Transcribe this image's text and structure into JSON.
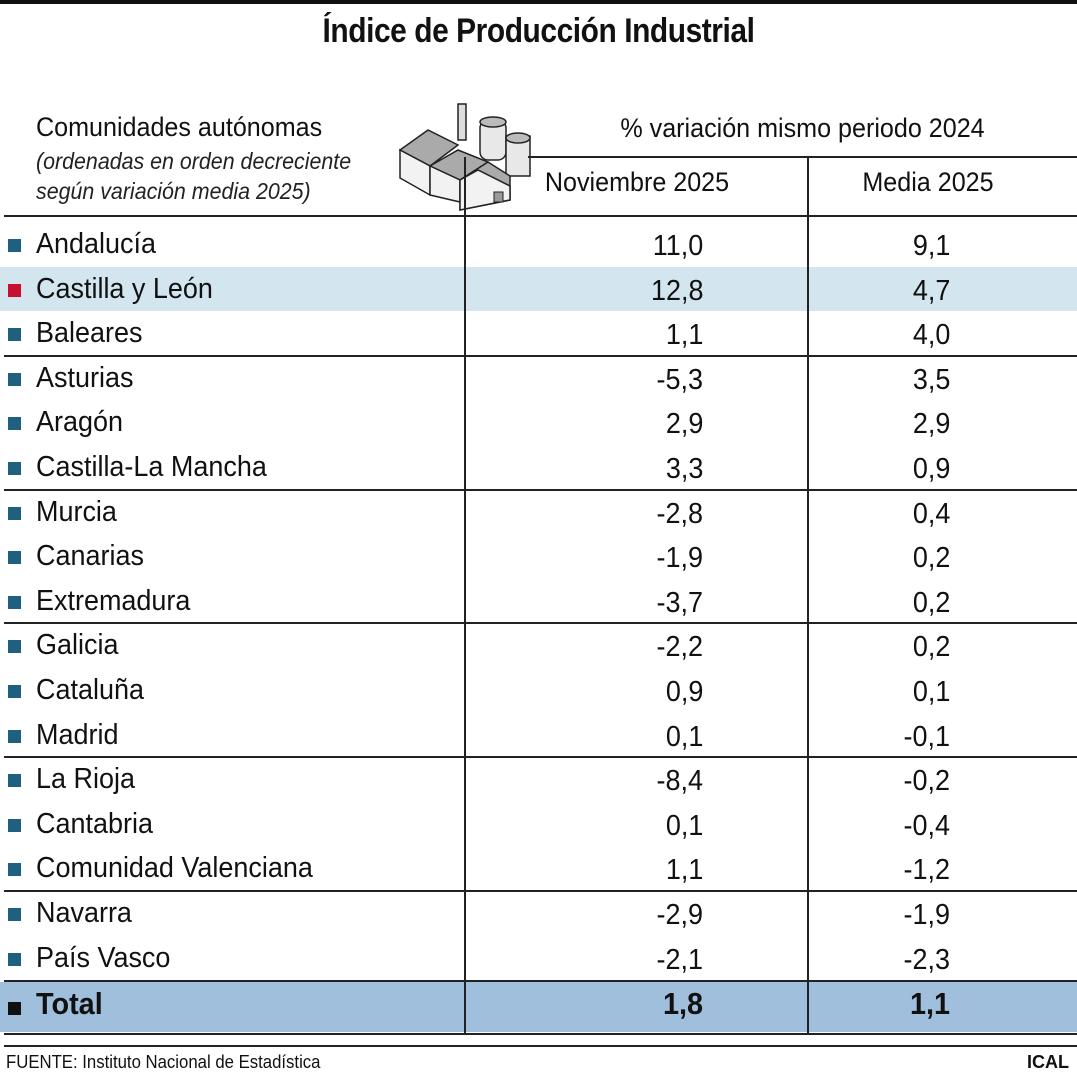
{
  "title": "Índice de Producción Industrial",
  "header": {
    "region_label": "Comunidades autónomas",
    "region_note_1": "(ordenadas en orden decreciente",
    "region_note_2": "según variación media 2025)",
    "variation_label": "% variación mismo periodo 2024",
    "col_november": "Noviembre 2025",
    "col_average": "Media 2025",
    "icon": "factory-icon"
  },
  "colors": {
    "default_marker": "#1f5f7f",
    "highlight_marker": "#c8102e",
    "highlight_row": "#d3e5ef",
    "total_row": "#9fbfdc",
    "total_marker": "#111111"
  },
  "rows": [
    {
      "name": "Andalucía",
      "nov": "11,0",
      "avg": "9,1"
    },
    {
      "name": "Castilla y León",
      "nov": "12,8",
      "avg": "4,7",
      "highlight": true
    },
    {
      "name": "Baleares",
      "nov": "1,1",
      "avg": "4,0"
    },
    {
      "name": "Asturias",
      "nov": "-5,3",
      "avg": "3,5"
    },
    {
      "name": "Aragón",
      "nov": "2,9",
      "avg": "2,9"
    },
    {
      "name": "Castilla-La Mancha",
      "nov": "3,3",
      "avg": "0,9"
    },
    {
      "name": "Murcia",
      "nov": "-2,8",
      "avg": "0,4"
    },
    {
      "name": "Canarias",
      "nov": "-1,9",
      "avg": "0,2"
    },
    {
      "name": "Extremadura",
      "nov": "-3,7",
      "avg": "0,2"
    },
    {
      "name": "Galicia",
      "nov": "-2,2",
      "avg": "0,2"
    },
    {
      "name": "Cataluña",
      "nov": "0,9",
      "avg": "0,1"
    },
    {
      "name": "Madrid",
      "nov": "0,1",
      "avg": "-0,1"
    },
    {
      "name": "La Rioja",
      "nov": "-8,4",
      "avg": "-0,2"
    },
    {
      "name": "Cantabria",
      "nov": "0,1",
      "avg": "-0,4"
    },
    {
      "name": "Comunidad Valenciana",
      "nov": "1,1",
      "avg": "-1,2"
    },
    {
      "name": "Navarra",
      "nov": "-2,9",
      "avg": "-1,9"
    },
    {
      "name": "País Vasco",
      "nov": "-2,1",
      "avg": "-2,3"
    }
  ],
  "total": {
    "name": "Total",
    "nov": "1,8",
    "avg": "1,1"
  },
  "footer": {
    "source": "FUENTE: Instituto Nacional de Estadística",
    "brand": "ICAL"
  }
}
